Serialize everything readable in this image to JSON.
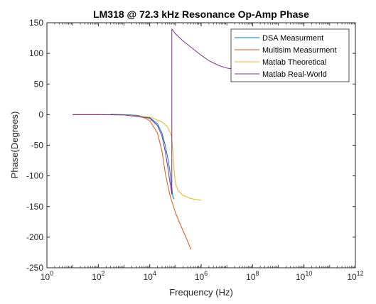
{
  "chart_data": {
    "type": "line",
    "title": "LM318 @ 72.3 kHz Resonance Op-Amp Phase",
    "xlabel": "Frequency (Hz)",
    "ylabel": "Phase(Degrees)",
    "x_scale": "log",
    "xlim": [
      1,
      1000000000000
    ],
    "ylim": [
      -250,
      150
    ],
    "x_ticks": [
      {
        "value": 1,
        "base": "10",
        "exp": "0"
      },
      {
        "value": 100,
        "base": "10",
        "exp": "2"
      },
      {
        "value": 10000,
        "base": "10",
        "exp": "4"
      },
      {
        "value": 1000000,
        "base": "10",
        "exp": "6"
      },
      {
        "value": 100000000,
        "base": "10",
        "exp": "8"
      },
      {
        "value": 10000000000,
        "base": "10",
        "exp": "10"
      },
      {
        "value": 1000000000000,
        "base": "10",
        "exp": "12"
      }
    ],
    "y_ticks": [
      "150",
      "100",
      "50",
      "0",
      "-50",
      "-100",
      "-150",
      "-200",
      "-250"
    ],
    "grid": false,
    "legend_position": "top-right",
    "series": [
      {
        "name": "DSA Measurment",
        "color": "#0072BD",
        "points": [
          [
            300,
            0.5
          ],
          [
            1000,
            0
          ],
          [
            3000,
            -1
          ],
          [
            10000,
            -5
          ],
          [
            20000,
            -15
          ],
          [
            30000,
            -30
          ],
          [
            40000,
            -50
          ],
          [
            50000,
            -70
          ],
          [
            60000,
            -90
          ],
          [
            70000,
            -115
          ],
          [
            80000,
            -135
          ],
          [
            90000,
            -138
          ]
        ]
      },
      {
        "name": "Multisim Measurment",
        "color": "#D95319",
        "points": [
          [
            10,
            0
          ],
          [
            100,
            0
          ],
          [
            1000,
            -0.5
          ],
          [
            5000,
            -3
          ],
          [
            10000,
            -10
          ],
          [
            20000,
            -30
          ],
          [
            30000,
            -60
          ],
          [
            40000,
            -95
          ],
          [
            50000,
            -115
          ],
          [
            60000,
            -130
          ],
          [
            70000,
            -140
          ],
          [
            80000,
            -147
          ],
          [
            100000,
            -160
          ],
          [
            150000,
            -178
          ],
          [
            200000,
            -190
          ],
          [
            300000,
            -207
          ],
          [
            400000,
            -220
          ]
        ]
      },
      {
        "name": "Matlab Theoretical",
        "color": "#EDB120",
        "points": [
          [
            10,
            0
          ],
          [
            100,
            0
          ],
          [
            1000,
            -0.5
          ],
          [
            10000,
            -4
          ],
          [
            30000,
            -12
          ],
          [
            50000,
            -20
          ],
          [
            70000,
            -35
          ],
          [
            80000,
            -60
          ],
          [
            90000,
            -95
          ],
          [
            100000,
            -112
          ],
          [
            130000,
            -125
          ],
          [
            200000,
            -132
          ],
          [
            400000,
            -137
          ],
          [
            1000000,
            -140
          ]
        ]
      },
      {
        "name": "Matlab Real-World",
        "color": "#7E2F8E",
        "points": [
          [
            10,
            0
          ],
          [
            100,
            0
          ],
          [
            1000,
            -0.5
          ],
          [
            10000,
            -6
          ],
          [
            20000,
            -18
          ],
          [
            30000,
            -35
          ],
          [
            40000,
            -60
          ],
          [
            50000,
            -85
          ],
          [
            60000,
            -108
          ],
          [
            70000,
            -125
          ],
          [
            72300,
            -130
          ],
          [
            72400,
            140
          ],
          [
            100000,
            132
          ],
          [
            200000,
            120
          ],
          [
            500000,
            107
          ],
          [
            1000000,
            97
          ],
          [
            2000000,
            88
          ],
          [
            5000000,
            80
          ],
          [
            10000000,
            76
          ],
          [
            30000000,
            73
          ],
          [
            100000000,
            72
          ]
        ]
      }
    ]
  }
}
